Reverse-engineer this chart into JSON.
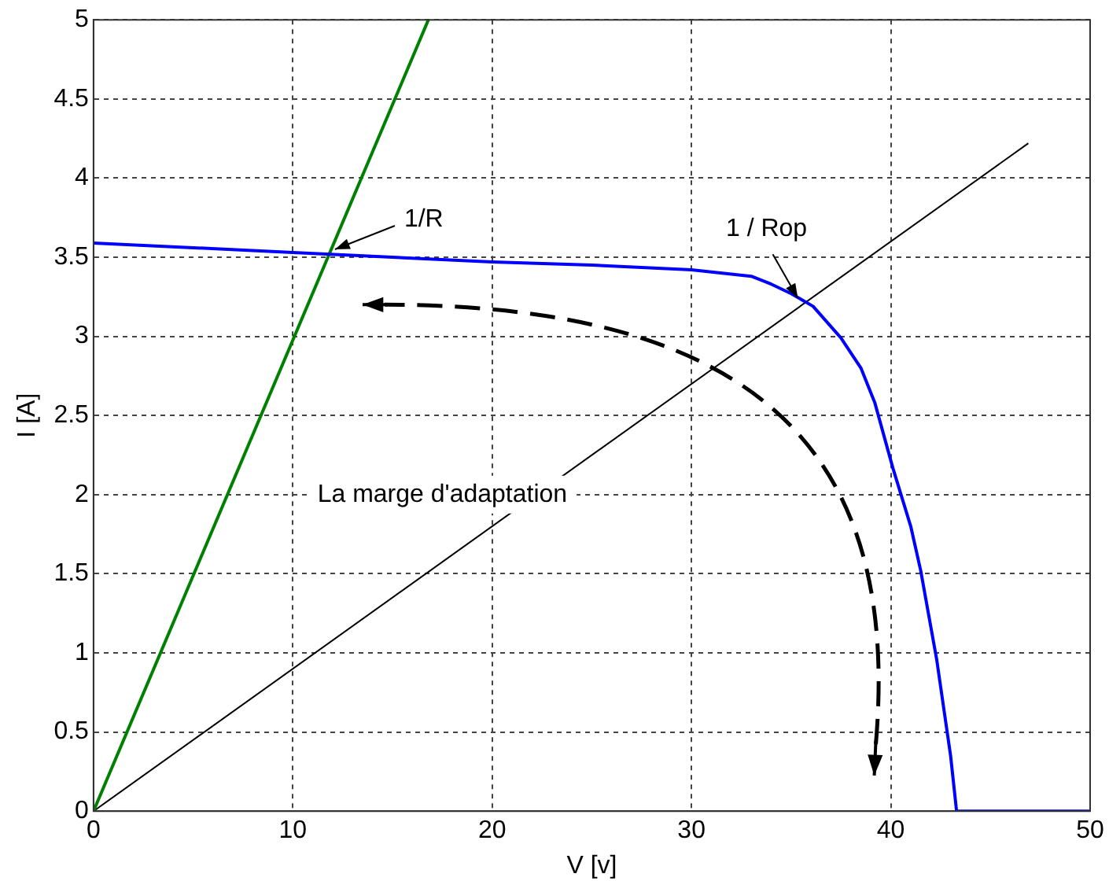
{
  "chart_data": {
    "type": "line",
    "xlabel": "V [v]",
    "ylabel": "I [A]",
    "xlim": [
      0,
      50
    ],
    "ylim": [
      0,
      5
    ],
    "xticks": [
      0,
      10,
      20,
      30,
      40,
      50
    ],
    "yticks": [
      0,
      0.5,
      1,
      1.5,
      2,
      2.5,
      3,
      3.5,
      4,
      4.5,
      5
    ],
    "grid": true,
    "legend": false,
    "marker": "none",
    "line_style": "solid",
    "series": [
      {
        "color": "#0000ff",
        "x": [
          0,
          5,
          10,
          15,
          20,
          25,
          30,
          33,
          34,
          35,
          36.1,
          37.5,
          38.5,
          39.2,
          40.1,
          41,
          41.5,
          42.3,
          43,
          43.3,
          50
        ],
        "values": [
          3.59,
          3.56,
          3.53,
          3.5,
          3.47,
          3.45,
          3.42,
          3.38,
          3.33,
          3.27,
          3.19,
          2.99,
          2.8,
          2.58,
          2.17,
          1.8,
          1.52,
          0.96,
          0.35,
          0,
          0
        ]
      },
      {
        "color": "#008000",
        "x": [
          0,
          16.8
        ],
        "values": [
          0,
          5
        ]
      },
      {
        "color": "#000000",
        "x": [
          0,
          46.9
        ],
        "values": [
          0,
          4.22
        ]
      }
    ],
    "annotations": [
      {
        "text": "1/R",
        "x": 11.8,
        "y": 3.52
      },
      {
        "text": "1 / Rop",
        "x": 35.5,
        "y": 3.2
      },
      "La marge d'adaptation"
    ]
  }
}
